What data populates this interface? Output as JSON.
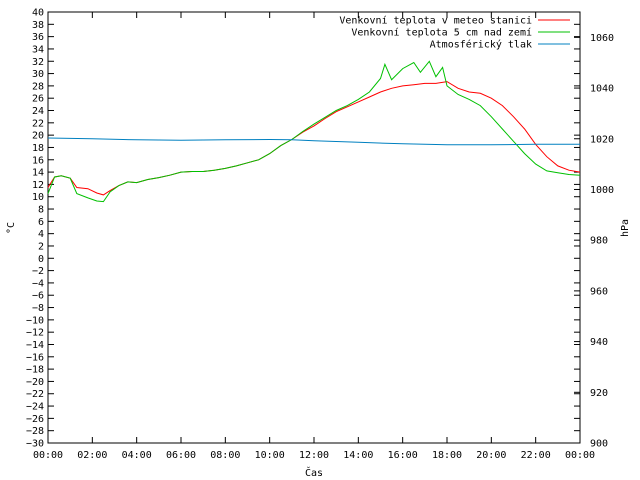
{
  "chart_data": {
    "type": "line",
    "title": "",
    "xlabel": "Čas",
    "ylabel_left": "°C",
    "ylabel_right": "hPa",
    "grid": false,
    "legend_position": "top-right",
    "x_ticks": [
      "00:00",
      "02:00",
      "04:00",
      "06:00",
      "08:00",
      "10:00",
      "12:00",
      "14:00",
      "16:00",
      "18:00",
      "20:00",
      "22:00",
      "00:00"
    ],
    "x_range_hours": [
      0,
      24
    ],
    "y_left_range": [
      -30,
      40
    ],
    "y_left_ticks": [
      "-30",
      "-28",
      "-26",
      "-24",
      "-22",
      "-20",
      "-18",
      "-16",
      "-14",
      "-12",
      "-10",
      "-8",
      "-6",
      "-4",
      "-2",
      "0",
      "2",
      "4",
      "6",
      "8",
      "10",
      "12",
      "14",
      "16",
      "18",
      "20",
      "22",
      "24",
      "26",
      "28",
      "30",
      "32",
      "34",
      "36",
      "38",
      "40"
    ],
    "y_right_range": [
      900,
      1070
    ],
    "y_right_ticks": [
      "900",
      "920",
      "940",
      "960",
      "980",
      "1000",
      "1020",
      "1040",
      "1060"
    ],
    "series": [
      {
        "name": "Venkovní teplota v meteo stanici",
        "color": "#ff0000",
        "axis": "left",
        "x": [
          0,
          0.3,
          0.6,
          1.0,
          1.3,
          1.8,
          2.2,
          2.5,
          2.8,
          3.2,
          3.6,
          4.0,
          4.5,
          5.0,
          5.5,
          6.0,
          6.5,
          7.0,
          7.5,
          8.0,
          8.5,
          9.0,
          9.5,
          10.0,
          10.5,
          11.0,
          11.5,
          12.0,
          12.5,
          13.0,
          13.5,
          14.0,
          14.5,
          15.0,
          15.5,
          16.0,
          16.5,
          17.0,
          17.5,
          18.0,
          18.5,
          19.0,
          19.5,
          20.0,
          20.5,
          21.0,
          21.5,
          22.0,
          22.5,
          23.0,
          23.5,
          24.0
        ],
        "y": [
          11.5,
          13.2,
          13.4,
          13.0,
          11.5,
          11.3,
          10.6,
          10.3,
          11.0,
          11.8,
          12.4,
          12.3,
          12.8,
          13.1,
          13.5,
          14.0,
          14.1,
          14.1,
          14.3,
          14.6,
          15.0,
          15.5,
          16.0,
          17.0,
          18.3,
          19.3,
          20.5,
          21.5,
          22.7,
          23.8,
          24.6,
          25.4,
          26.2,
          27.0,
          27.6,
          28.0,
          28.2,
          28.4,
          28.4,
          28.7,
          27.6,
          27.0,
          26.8,
          26.0,
          24.8,
          23.0,
          21.0,
          18.5,
          16.5,
          15.0,
          14.3,
          14.0
        ]
      },
      {
        "name": "Venkovní teplota 5 cm nad zemí",
        "color": "#00c000",
        "axis": "left",
        "x": [
          0,
          0.3,
          0.6,
          1.0,
          1.3,
          1.8,
          2.2,
          2.5,
          2.8,
          3.2,
          3.6,
          4.0,
          4.5,
          5.0,
          5.5,
          6.0,
          6.5,
          7.0,
          7.5,
          8.0,
          8.5,
          9.0,
          9.5,
          10.0,
          10.5,
          11.0,
          11.5,
          12.0,
          12.5,
          13.0,
          13.5,
          14.0,
          14.5,
          15.0,
          15.2,
          15.5,
          16.0,
          16.5,
          16.8,
          17.2,
          17.5,
          17.8,
          18.0,
          18.5,
          19.0,
          19.5,
          20.0,
          20.5,
          21.0,
          21.5,
          22.0,
          22.5,
          23.0,
          23.5,
          24.0
        ],
        "y": [
          10.5,
          13.2,
          13.4,
          13.0,
          10.5,
          9.8,
          9.3,
          9.2,
          10.8,
          11.8,
          12.4,
          12.3,
          12.8,
          13.1,
          13.5,
          14.0,
          14.1,
          14.1,
          14.3,
          14.6,
          15.0,
          15.5,
          16.0,
          17.0,
          18.3,
          19.3,
          20.6,
          21.8,
          22.9,
          24.0,
          24.8,
          25.8,
          27.0,
          29.2,
          31.5,
          29.0,
          30.8,
          31.8,
          30.2,
          32.0,
          29.5,
          31.0,
          28.0,
          26.6,
          25.8,
          24.8,
          23.0,
          21.0,
          19.0,
          17.0,
          15.3,
          14.2,
          13.9,
          13.6,
          13.5
        ]
      },
      {
        "name": "Atmosférický tlak",
        "color": "#0080c0",
        "axis": "right",
        "x": [
          0,
          2,
          4,
          6,
          8,
          10,
          11,
          12,
          14,
          16,
          18,
          20,
          22,
          24
        ],
        "y": [
          1020.3,
          1020.0,
          1019.6,
          1019.4,
          1019.6,
          1019.7,
          1019.6,
          1019.2,
          1018.6,
          1018.0,
          1017.6,
          1017.6,
          1017.8,
          1017.8
        ]
      }
    ]
  }
}
